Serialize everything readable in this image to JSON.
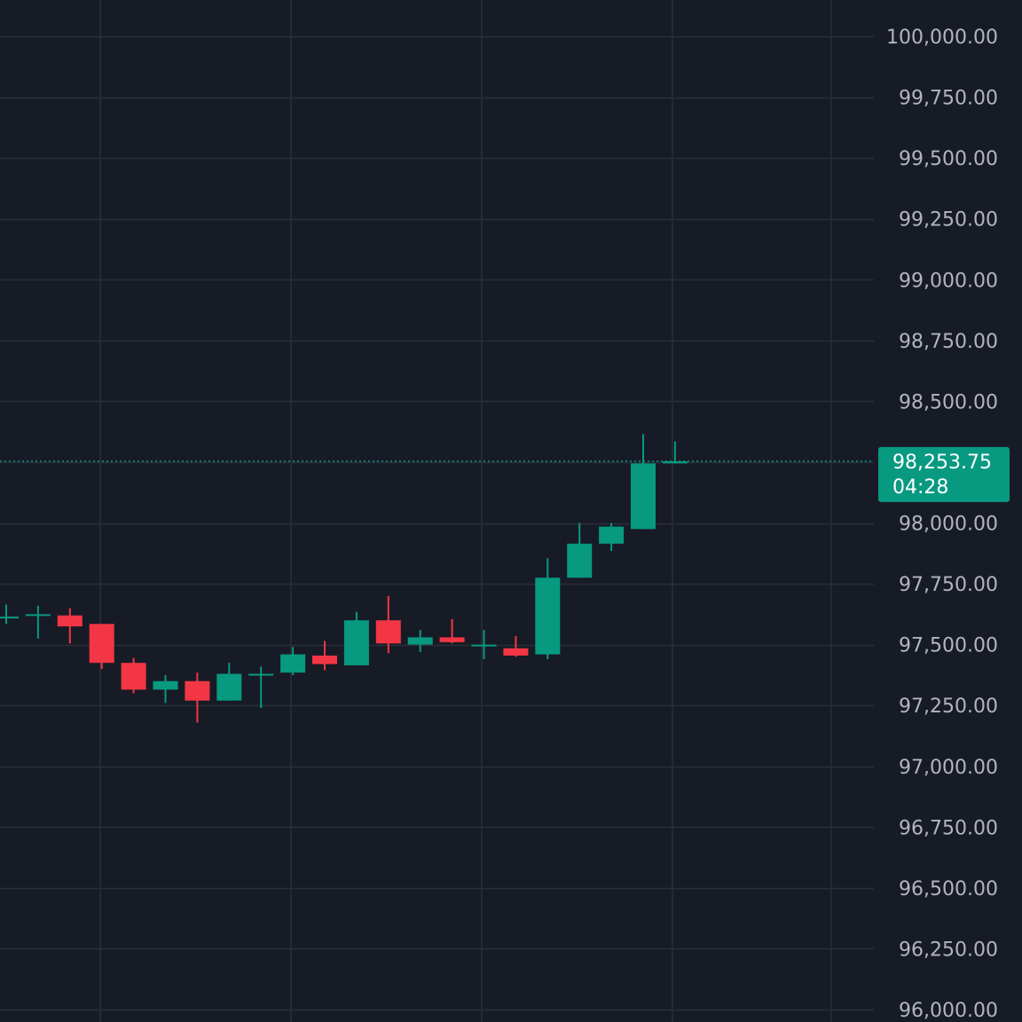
{
  "chart_data": {
    "type": "candlestick",
    "ylim": [
      96000,
      100000
    ],
    "y_ticks": [
      100000,
      99750,
      99500,
      99250,
      99000,
      98750,
      98500,
      98250,
      98000,
      97750,
      97500,
      97250,
      97000,
      96750,
      96500,
      96250,
      96000
    ],
    "y_tick_labels": [
      "100,000.00",
      "99,750.00",
      "99,500.00",
      "99,250.00",
      "99,000.00",
      "98,750.00",
      "98,500.00",
      "",
      "98,000.00",
      "97,750.00",
      "97,500.00",
      "97,250.00",
      "97,000.00",
      "96,750.00",
      "96,500.00",
      "96,250.00",
      "96,000.00"
    ],
    "x_gridlines": 5,
    "grid": true,
    "candles": [
      {
        "open": 97610,
        "close": 97615,
        "high": 97665,
        "low": 97585
      },
      {
        "open": 97620,
        "close": 97625,
        "high": 97660,
        "low": 97525
      },
      {
        "open": 97620,
        "close": 97575,
        "high": 97650,
        "low": 97505
      },
      {
        "open": 97585,
        "close": 97425,
        "high": 97585,
        "low": 97400
      },
      {
        "open": 97425,
        "close": 97315,
        "high": 97445,
        "low": 97300
      },
      {
        "open": 97315,
        "close": 97350,
        "high": 97375,
        "low": 97260
      },
      {
        "open": 97350,
        "close": 97270,
        "high": 97385,
        "low": 97180
      },
      {
        "open": 97270,
        "close": 97380,
        "high": 97425,
        "low": 97270
      },
      {
        "open": 97375,
        "close": 97380,
        "high": 97410,
        "low": 97240
      },
      {
        "open": 97385,
        "close": 97460,
        "high": 97490,
        "low": 97375
      },
      {
        "open": 97455,
        "close": 97420,
        "high": 97515,
        "low": 97395
      },
      {
        "open": 97415,
        "close": 97600,
        "high": 97635,
        "low": 97415
      },
      {
        "open": 97600,
        "close": 97505,
        "high": 97700,
        "low": 97465
      },
      {
        "open": 97500,
        "close": 97530,
        "high": 97560,
        "low": 97470
      },
      {
        "open": 97530,
        "close": 97510,
        "high": 97605,
        "low": 97505
      },
      {
        "open": 97500,
        "close": 97500,
        "high": 97560,
        "low": 97440
      },
      {
        "open": 97485,
        "close": 97455,
        "high": 97535,
        "low": 97450
      },
      {
        "open": 97460,
        "close": 97775,
        "high": 97855,
        "low": 97440
      },
      {
        "open": 97775,
        "close": 97915,
        "high": 98000,
        "low": 97775
      },
      {
        "open": 97915,
        "close": 97985,
        "high": 98000,
        "low": 97885
      },
      {
        "open": 97975,
        "close": 98245,
        "high": 98365,
        "low": 97975
      },
      {
        "open": 98245,
        "close": 98253.75,
        "high": 98335,
        "low": 98245
      }
    ],
    "last_price": 98253.75,
    "last_price_label": "98,253.75",
    "countdown": "04:28",
    "colors": {
      "background": "#171b26",
      "grid": "#2a2e39",
      "up": "#089981",
      "down": "#f23645",
      "axis_text": "#b2b5be",
      "badge": "#089981",
      "badge_text": "#ffffff"
    }
  }
}
